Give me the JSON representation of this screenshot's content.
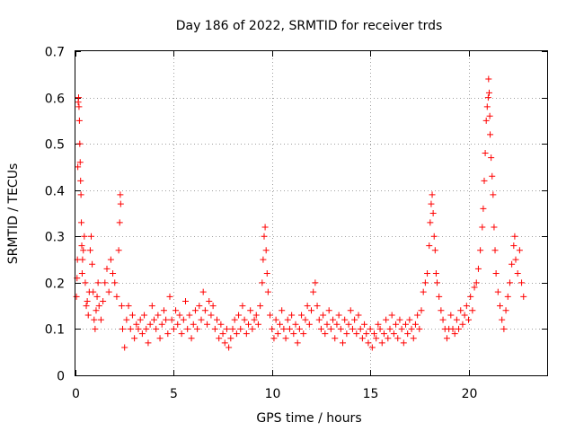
{
  "chart_data": {
    "type": "scatter",
    "title": "Day 186 of 2022, SRMTID for receiver trds",
    "xlabel": "GPS time / hours",
    "ylabel": "SRMTID / TECUs",
    "xlim": [
      0,
      24
    ],
    "ylim": [
      0,
      0.7
    ],
    "xticks": [
      0,
      5,
      10,
      15,
      20
    ],
    "xtick_labels": [
      "0",
      "5",
      "10",
      "15",
      "20"
    ],
    "yticks": [
      0,
      0.1,
      0.2,
      0.3,
      0.4,
      0.5,
      0.6,
      0.7
    ],
    "ytick_labels": [
      "0",
      "0.1",
      "0.2",
      "0.3",
      "0.4",
      "0.5",
      "0.6",
      "0.7"
    ],
    "grid": true,
    "marker": "+",
    "color": "#ff0000",
    "series": [
      {
        "name": "SRMTID",
        "points": [
          [
            0.05,
            0.17
          ],
          [
            0.08,
            0.21
          ],
          [
            0.1,
            0.25
          ],
          [
            0.12,
            0.45
          ],
          [
            0.14,
            0.59
          ],
          [
            0.16,
            0.6
          ],
          [
            0.18,
            0.58
          ],
          [
            0.2,
            0.55
          ],
          [
            0.22,
            0.5
          ],
          [
            0.24,
            0.46
          ],
          [
            0.26,
            0.42
          ],
          [
            0.28,
            0.39
          ],
          [
            0.3,
            0.33
          ],
          [
            0.32,
            0.28
          ],
          [
            0.34,
            0.22
          ],
          [
            0.36,
            0.25
          ],
          [
            0.4,
            0.27
          ],
          [
            0.45,
            0.3
          ],
          [
            0.5,
            0.2
          ],
          [
            0.55,
            0.15
          ],
          [
            0.6,
            0.16
          ],
          [
            0.65,
            0.13
          ],
          [
            0.7,
            0.18
          ],
          [
            0.75,
            0.27
          ],
          [
            0.8,
            0.3
          ],
          [
            0.85,
            0.24
          ],
          [
            0.9,
            0.18
          ],
          [
            0.95,
            0.12
          ],
          [
            1.0,
            0.1
          ],
          [
            1.05,
            0.14
          ],
          [
            1.1,
            0.17
          ],
          [
            1.15,
            0.2
          ],
          [
            1.2,
            0.15
          ],
          [
            1.3,
            0.12
          ],
          [
            1.4,
            0.16
          ],
          [
            1.5,
            0.2
          ],
          [
            1.6,
            0.23
          ],
          [
            1.7,
            0.18
          ],
          [
            1.8,
            0.25
          ],
          [
            1.9,
            0.22
          ],
          [
            2.0,
            0.2
          ],
          [
            2.1,
            0.17
          ],
          [
            2.2,
            0.27
          ],
          [
            2.25,
            0.33
          ],
          [
            2.28,
            0.39
          ],
          [
            2.3,
            0.37
          ],
          [
            2.35,
            0.15
          ],
          [
            2.4,
            0.1
          ],
          [
            2.5,
            0.06
          ],
          [
            2.6,
            0.12
          ],
          [
            2.7,
            0.15
          ],
          [
            2.8,
            0.1
          ],
          [
            2.9,
            0.13
          ],
          [
            3.0,
            0.08
          ],
          [
            3.1,
            0.11
          ],
          [
            3.2,
            0.1
          ],
          [
            3.3,
            0.12
          ],
          [
            3.4,
            0.09
          ],
          [
            3.5,
            0.13
          ],
          [
            3.6,
            0.1
          ],
          [
            3.7,
            0.07
          ],
          [
            3.8,
            0.11
          ],
          [
            3.9,
            0.15
          ],
          [
            4.0,
            0.12
          ],
          [
            4.1,
            0.1
          ],
          [
            4.2,
            0.13
          ],
          [
            4.3,
            0.08
          ],
          [
            4.4,
            0.11
          ],
          [
            4.5,
            0.14
          ],
          [
            4.6,
            0.12
          ],
          [
            4.7,
            0.09
          ],
          [
            4.8,
            0.17
          ],
          [
            4.9,
            0.12
          ],
          [
            5.0,
            0.1
          ],
          [
            5.1,
            0.14
          ],
          [
            5.2,
            0.11
          ],
          [
            5.3,
            0.13
          ],
          [
            5.4,
            0.09
          ],
          [
            5.5,
            0.12
          ],
          [
            5.6,
            0.16
          ],
          [
            5.7,
            0.1
          ],
          [
            5.8,
            0.13
          ],
          [
            5.9,
            0.08
          ],
          [
            6.0,
            0.11
          ],
          [
            6.1,
            0.14
          ],
          [
            6.2,
            0.1
          ],
          [
            6.3,
            0.15
          ],
          [
            6.4,
            0.12
          ],
          [
            6.5,
            0.18
          ],
          [
            6.6,
            0.14
          ],
          [
            6.7,
            0.11
          ],
          [
            6.8,
            0.16
          ],
          [
            6.9,
            0.13
          ],
          [
            7.0,
            0.15
          ],
          [
            7.1,
            0.1
          ],
          [
            7.2,
            0.12
          ],
          [
            7.3,
            0.08
          ],
          [
            7.4,
            0.11
          ],
          [
            7.5,
            0.09
          ],
          [
            7.6,
            0.07
          ],
          [
            7.7,
            0.1
          ],
          [
            7.8,
            0.06
          ],
          [
            7.9,
            0.08
          ],
          [
            8.0,
            0.1
          ],
          [
            8.1,
            0.12
          ],
          [
            8.2,
            0.09
          ],
          [
            8.3,
            0.13
          ],
          [
            8.4,
            0.1
          ],
          [
            8.5,
            0.15
          ],
          [
            8.6,
            0.12
          ],
          [
            8.7,
            0.09
          ],
          [
            8.8,
            0.11
          ],
          [
            8.9,
            0.14
          ],
          [
            9.0,
            0.1
          ],
          [
            9.1,
            0.12
          ],
          [
            9.2,
            0.13
          ],
          [
            9.3,
            0.11
          ],
          [
            9.4,
            0.15
          ],
          [
            9.5,
            0.2
          ],
          [
            9.55,
            0.25
          ],
          [
            9.6,
            0.3
          ],
          [
            9.65,
            0.32
          ],
          [
            9.7,
            0.27
          ],
          [
            9.75,
            0.22
          ],
          [
            9.8,
            0.18
          ],
          [
            9.9,
            0.13
          ],
          [
            10.0,
            0.1
          ],
          [
            10.1,
            0.08
          ],
          [
            10.2,
            0.12
          ],
          [
            10.3,
            0.09
          ],
          [
            10.4,
            0.11
          ],
          [
            10.5,
            0.14
          ],
          [
            10.6,
            0.1
          ],
          [
            10.7,
            0.08
          ],
          [
            10.8,
            0.12
          ],
          [
            10.9,
            0.1
          ],
          [
            11.0,
            0.13
          ],
          [
            11.1,
            0.09
          ],
          [
            11.2,
            0.11
          ],
          [
            11.3,
            0.07
          ],
          [
            11.4,
            0.1
          ],
          [
            11.5,
            0.13
          ],
          [
            11.6,
            0.09
          ],
          [
            11.7,
            0.12
          ],
          [
            11.8,
            0.15
          ],
          [
            11.9,
            0.11
          ],
          [
            12.0,
            0.14
          ],
          [
            12.1,
            0.18
          ],
          [
            12.2,
            0.2
          ],
          [
            12.3,
            0.15
          ],
          [
            12.4,
            0.12
          ],
          [
            12.5,
            0.1
          ],
          [
            12.6,
            0.13
          ],
          [
            12.7,
            0.09
          ],
          [
            12.8,
            0.11
          ],
          [
            12.9,
            0.14
          ],
          [
            13.0,
            0.1
          ],
          [
            13.1,
            0.12
          ],
          [
            13.2,
            0.08
          ],
          [
            13.3,
            0.11
          ],
          [
            13.4,
            0.13
          ],
          [
            13.5,
            0.1
          ],
          [
            13.6,
            0.07
          ],
          [
            13.7,
            0.12
          ],
          [
            13.8,
            0.09
          ],
          [
            13.9,
            0.11
          ],
          [
            14.0,
            0.14
          ],
          [
            14.1,
            0.1
          ],
          [
            14.2,
            0.12
          ],
          [
            14.3,
            0.09
          ],
          [
            14.4,
            0.13
          ],
          [
            14.5,
            0.1
          ],
          [
            14.6,
            0.08
          ],
          [
            14.7,
            0.11
          ],
          [
            14.8,
            0.09
          ],
          [
            14.9,
            0.07
          ],
          [
            15.0,
            0.1
          ],
          [
            15.1,
            0.06
          ],
          [
            15.2,
            0.09
          ],
          [
            15.3,
            0.08
          ],
          [
            15.4,
            0.11
          ],
          [
            15.5,
            0.1
          ],
          [
            15.6,
            0.07
          ],
          [
            15.7,
            0.09
          ],
          [
            15.8,
            0.12
          ],
          [
            15.9,
            0.08
          ],
          [
            16.0,
            0.1
          ],
          [
            16.1,
            0.13
          ],
          [
            16.2,
            0.09
          ],
          [
            16.3,
            0.11
          ],
          [
            16.4,
            0.08
          ],
          [
            16.5,
            0.12
          ],
          [
            16.6,
            0.1
          ],
          [
            16.7,
            0.07
          ],
          [
            16.8,
            0.11
          ],
          [
            16.9,
            0.09
          ],
          [
            17.0,
            0.12
          ],
          [
            17.1,
            0.1
          ],
          [
            17.2,
            0.08
          ],
          [
            17.3,
            0.11
          ],
          [
            17.4,
            0.13
          ],
          [
            17.5,
            0.1
          ],
          [
            17.6,
            0.14
          ],
          [
            17.7,
            0.18
          ],
          [
            17.8,
            0.2
          ],
          [
            17.9,
            0.22
          ],
          [
            18.0,
            0.28
          ],
          [
            18.05,
            0.33
          ],
          [
            18.1,
            0.37
          ],
          [
            18.15,
            0.39
          ],
          [
            18.2,
            0.35
          ],
          [
            18.25,
            0.3
          ],
          [
            18.3,
            0.27
          ],
          [
            18.35,
            0.22
          ],
          [
            18.4,
            0.2
          ],
          [
            18.5,
            0.17
          ],
          [
            18.6,
            0.14
          ],
          [
            18.7,
            0.12
          ],
          [
            18.8,
            0.1
          ],
          [
            18.9,
            0.08
          ],
          [
            19.0,
            0.1
          ],
          [
            19.1,
            0.13
          ],
          [
            19.2,
            0.1
          ],
          [
            19.3,
            0.09
          ],
          [
            19.4,
            0.12
          ],
          [
            19.5,
            0.1
          ],
          [
            19.6,
            0.14
          ],
          [
            19.7,
            0.11
          ],
          [
            19.8,
            0.13
          ],
          [
            19.9,
            0.15
          ],
          [
            20.0,
            0.12
          ],
          [
            20.1,
            0.17
          ],
          [
            20.2,
            0.14
          ],
          [
            20.3,
            0.19
          ],
          [
            20.4,
            0.2
          ],
          [
            20.5,
            0.23
          ],
          [
            20.6,
            0.27
          ],
          [
            20.7,
            0.32
          ],
          [
            20.75,
            0.36
          ],
          [
            20.8,
            0.42
          ],
          [
            20.85,
            0.48
          ],
          [
            20.9,
            0.55
          ],
          [
            20.95,
            0.58
          ],
          [
            21.0,
            0.6
          ],
          [
            21.02,
            0.64
          ],
          [
            21.05,
            0.61
          ],
          [
            21.08,
            0.56
          ],
          [
            21.1,
            0.52
          ],
          [
            21.15,
            0.47
          ],
          [
            21.2,
            0.43
          ],
          [
            21.25,
            0.39
          ],
          [
            21.3,
            0.32
          ],
          [
            21.35,
            0.27
          ],
          [
            21.4,
            0.22
          ],
          [
            21.5,
            0.18
          ],
          [
            21.6,
            0.15
          ],
          [
            21.7,
            0.12
          ],
          [
            21.8,
            0.1
          ],
          [
            21.9,
            0.14
          ],
          [
            22.0,
            0.17
          ],
          [
            22.1,
            0.2
          ],
          [
            22.2,
            0.24
          ],
          [
            22.3,
            0.28
          ],
          [
            22.35,
            0.3
          ],
          [
            22.4,
            0.25
          ],
          [
            22.5,
            0.22
          ],
          [
            22.6,
            0.27
          ],
          [
            22.7,
            0.2
          ],
          [
            22.8,
            0.17
          ]
        ]
      }
    ]
  }
}
